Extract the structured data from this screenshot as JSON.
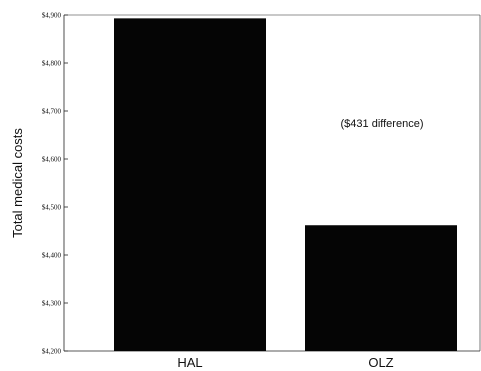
{
  "chart_data": {
    "type": "bar",
    "categories": [
      "HAL",
      "OLZ"
    ],
    "values": [
      4893,
      4462
    ],
    "title": "",
    "xlabel": "",
    "ylabel": "Total medical costs",
    "ylim": [
      4200,
      4900
    ],
    "yticks": [
      4200,
      4300,
      4400,
      4500,
      4600,
      4700,
      4800,
      4900
    ],
    "ytick_labels": [
      "$4,200",
      "$4,300",
      "$4,400",
      "$4,500",
      "$4,600",
      "$4,700",
      "$4,800",
      "$4,900"
    ],
    "annotation": "($431 difference)",
    "bar_color": "#050505",
    "grid": false,
    "legend": "none"
  }
}
